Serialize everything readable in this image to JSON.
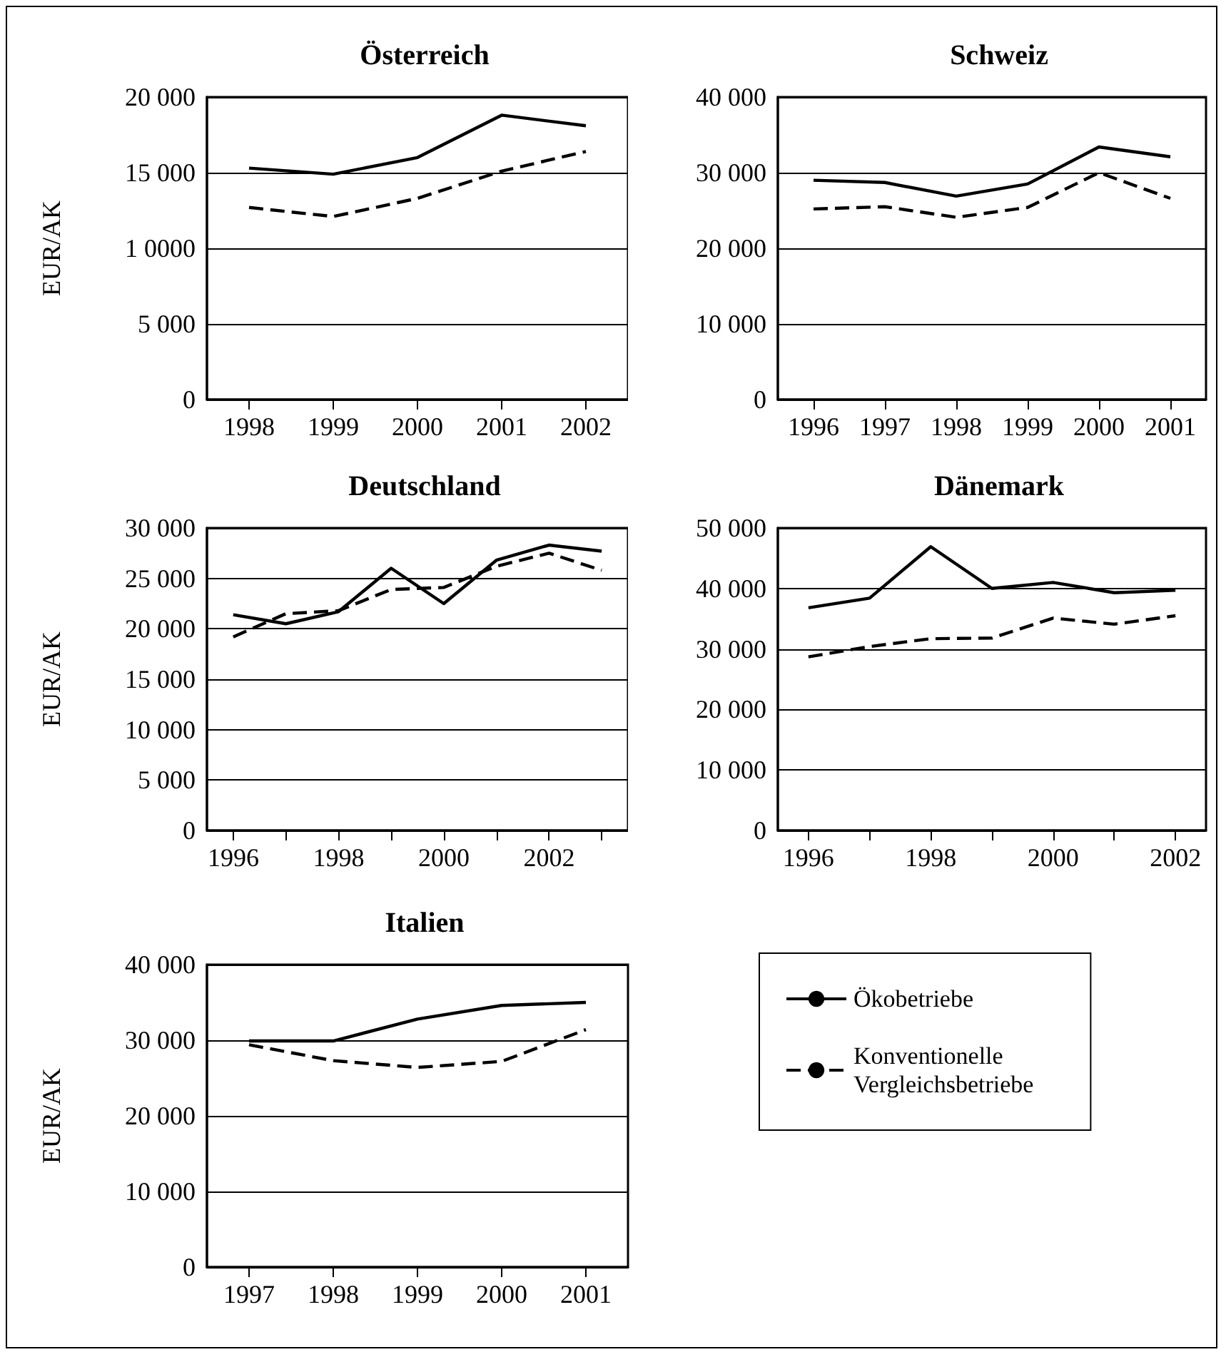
{
  "chart_data": [
    {
      "type": "line",
      "title": "Österreich",
      "ylabel": "EUR/AK",
      "categories": [
        "1998",
        "1999",
        "2000",
        "2001",
        "2002"
      ],
      "series": [
        {
          "color": "#000000",
          "line_style": "solid",
          "values": [
            15300,
            14900,
            16000,
            18800,
            18100
          ]
        },
        {
          "color": "#000000",
          "line_style": "dashed",
          "values": [
            12700,
            12100,
            13300,
            15100,
            16400
          ]
        }
      ],
      "ylim": [
        0,
        20000
      ],
      "yticks": [
        {
          "value": 0,
          "label": "0"
        },
        {
          "value": 5000,
          "label": "5 000"
        },
        {
          "value": 10000,
          "label": "1 0000"
        },
        {
          "value": 15000,
          "label": "15 000"
        },
        {
          "value": 20000,
          "label": "20 000"
        }
      ],
      "grid": "y"
    },
    {
      "type": "line",
      "title": "Schweiz",
      "categories": [
        "1996",
        "1997",
        "1998",
        "1999",
        "2000",
        "2001"
      ],
      "series": [
        {
          "color": "#000000",
          "line_style": "solid",
          "values": [
            29000,
            28700,
            26900,
            28500,
            33400,
            32100
          ]
        },
        {
          "color": "#000000",
          "line_style": "dashed",
          "values": [
            25200,
            25500,
            24100,
            25400,
            30000,
            26600
          ]
        }
      ],
      "ylim": [
        0,
        40000
      ],
      "yticks": [
        {
          "value": 0,
          "label": "0"
        },
        {
          "value": 10000,
          "label": "10 000"
        },
        {
          "value": 20000,
          "label": "20 000"
        },
        {
          "value": 30000,
          "label": "30 000"
        },
        {
          "value": 40000,
          "label": "40 000"
        }
      ],
      "grid": "y"
    },
    {
      "type": "line",
      "title": "Deutschland",
      "ylabel": "EUR/AK",
      "categories": [
        "1996",
        null,
        "1998",
        null,
        "2000",
        null,
        "2002",
        null
      ],
      "series": [
        {
          "color": "#000000",
          "line_style": "solid",
          "values": [
            21400,
            20500,
            21700,
            26000,
            22500,
            26800,
            28300,
            27700
          ]
        },
        {
          "color": "#000000",
          "line_style": "dashed",
          "values": [
            19200,
            21500,
            21800,
            23900,
            24100,
            26200,
            27500,
            25800
          ]
        }
      ],
      "ylim": [
        0,
        30000
      ],
      "yticks": [
        {
          "value": 0,
          "label": "0"
        },
        {
          "value": 5000,
          "label": "5 000"
        },
        {
          "value": 10000,
          "label": "10 000"
        },
        {
          "value": 15000,
          "label": "15 000"
        },
        {
          "value": 20000,
          "label": "20 000"
        },
        {
          "value": 25000,
          "label": "25 000"
        },
        {
          "value": 30000,
          "label": "30 000"
        }
      ],
      "grid": "y"
    },
    {
      "type": "line",
      "title": "Dänemark",
      "categories": [
        "1996",
        null,
        "1998",
        null,
        "2000",
        null,
        "2002"
      ],
      "series": [
        {
          "color": "#000000",
          "line_style": "solid",
          "values": [
            36800,
            38400,
            46900,
            40000,
            41000,
            39300,
            39700
          ]
        },
        {
          "color": "#000000",
          "line_style": "dashed",
          "values": [
            28700,
            30400,
            31700,
            31800,
            35100,
            34100,
            35500
          ]
        }
      ],
      "ylim": [
        0,
        50000
      ],
      "yticks": [
        {
          "value": 0,
          "label": "0"
        },
        {
          "value": 10000,
          "label": "10 000"
        },
        {
          "value": 20000,
          "label": "20 000"
        },
        {
          "value": 30000,
          "label": "30 000"
        },
        {
          "value": 40000,
          "label": "40 000"
        },
        {
          "value": 50000,
          "label": "50 000"
        }
      ],
      "grid": "y"
    },
    {
      "type": "line",
      "title": "Italien",
      "ylabel": "EUR/AK",
      "categories": [
        "1997",
        "1998",
        "1999",
        "2000",
        "2001"
      ],
      "series": [
        {
          "name": "Ökobetriebe",
          "color": "#000000",
          "line_style": "solid",
          "values": [
            29900,
            29900,
            32800,
            34600,
            35000
          ]
        },
        {
          "name": "Konventionelle Vergleichsbetriebe",
          "color": "#000000",
          "line_style": "dashed",
          "values": [
            29400,
            27300,
            26400,
            27200,
            31400
          ]
        }
      ],
      "ylim": [
        0,
        40000
      ],
      "yticks": [
        {
          "value": 0,
          "label": "0"
        },
        {
          "value": 10000,
          "label": "10 000"
        },
        {
          "value": 20000,
          "label": "20 000"
        },
        {
          "value": 30000,
          "label": "30 000"
        },
        {
          "value": 40000,
          "label": "40 000"
        }
      ],
      "grid": "y",
      "legend": "right"
    }
  ]
}
